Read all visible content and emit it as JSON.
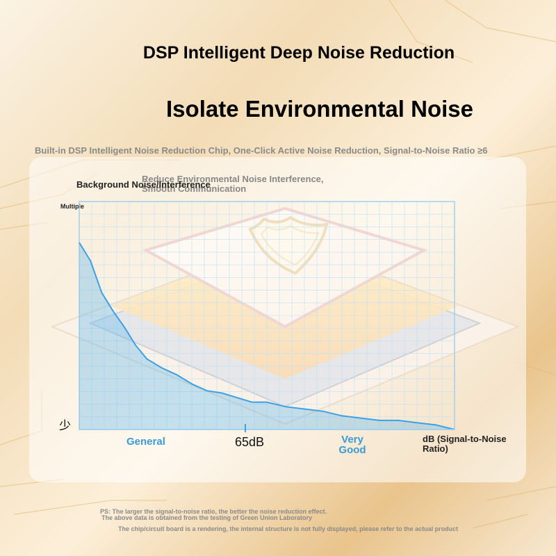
{
  "header": {
    "title": "DSP Intelligent Deep Noise Reduction",
    "headline": "Isolate Environmental Noise",
    "subtitle": "Built-in DSP Intelligent Noise Reduction Chip, One-Click Active Noise Reduction, Signal-to-Noise Ratio ≥6"
  },
  "annotation": {
    "line1": "Reduce Environmental Noise Interference,",
    "line2": "Smooth Communication"
  },
  "chart_data": {
    "type": "area",
    "ylabel": "Background Noise/Interference",
    "y_unit_label": "Multiple",
    "y_low_label": "少",
    "xlabel": "dB (Signal-to-Noise Ratio)",
    "x_tick_labels": [
      "General",
      "65dB",
      "Very Good"
    ],
    "grid": true,
    "series_color": "#3da0e0",
    "series": [
      {
        "x": [
          0,
          0.03,
          0.06,
          0.09,
          0.12,
          0.15,
          0.18,
          0.22,
          0.26,
          0.3,
          0.34,
          0.38,
          0.42,
          0.46,
          0.5,
          0.55,
          0.6,
          0.65,
          0.7,
          0.75,
          0.8,
          0.85,
          0.9,
          0.95,
          1.0
        ],
        "values": [
          0.82,
          0.74,
          0.6,
          0.52,
          0.45,
          0.37,
          0.31,
          0.27,
          0.24,
          0.2,
          0.17,
          0.16,
          0.14,
          0.12,
          0.12,
          0.1,
          0.09,
          0.08,
          0.06,
          0.05,
          0.04,
          0.04,
          0.03,
          0.02,
          0.0
        ]
      }
    ]
  },
  "notes": {
    "line1": "PS: The larger the signal-to-noise ratio, the better the noise reduction effect.",
    "line2": "The above data is obtained from the testing of Green Union Laboratory",
    "line3": "The chip/circuit board is a rendering, the internal structure is not fully displayed, please refer to the actual product"
  }
}
